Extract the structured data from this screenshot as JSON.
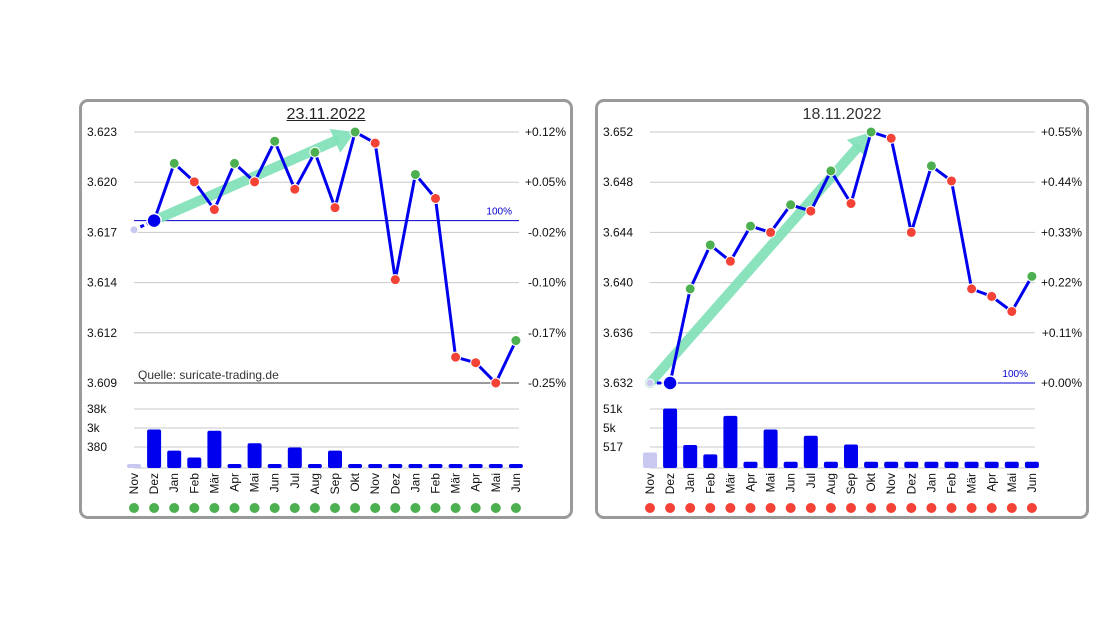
{
  "chart_data": [
    {
      "type": "line",
      "title": "23.11.2022",
      "categories": [
        "Nov",
        "Dez",
        "Jan",
        "Feb",
        "Mär",
        "Apr",
        "Mai",
        "Jun",
        "Jul",
        "Aug",
        "Sep",
        "Okt",
        "Nov",
        "Dez",
        "Jan",
        "Feb",
        "Mär",
        "Apr",
        "Mai",
        "Jun"
      ],
      "values": [
        3.6177,
        3.6182,
        3.6213,
        3.6203,
        3.6188,
        3.6213,
        3.6203,
        3.6225,
        3.6199,
        3.6219,
        3.6189,
        3.623,
        3.6224,
        3.615,
        3.6207,
        3.6194,
        3.6108,
        3.6105,
        3.6094,
        3.6117
      ],
      "marker_colors": [
        "#c8c8f0",
        "#0000ee",
        "#4caf50",
        "#f44336",
        "#f44336",
        "#4caf50",
        "#f44336",
        "#4caf50",
        "#f44336",
        "#4caf50",
        "#f44336",
        "#4caf50",
        "#f44336",
        "#f44336",
        "#4caf50",
        "#f44336",
        "#f44336",
        "#f44336",
        "#f44336",
        "#4caf50"
      ],
      "ylim": [
        3.6094,
        3.623
      ],
      "y_ticks": [
        "3.623",
        "3.620",
        "3.617",
        "3.614",
        "3.612",
        "3.609"
      ],
      "y2_ticks": [
        "+0.12%",
        "+0.05%",
        "-0.02%",
        "-0.10%",
        "-0.17%",
        "-0.25%"
      ],
      "reference_value": 3.6182,
      "reference_label": "100%",
      "source_note": "Quelle: suricate-trading.de",
      "trend_arrow": {
        "from_index": 1,
        "to_index": 11
      },
      "volume": {
        "values": [
          0.03,
          0.62,
          0.28,
          0.17,
          0.6,
          0.04,
          0.4,
          0.03,
          0.33,
          0.03,
          0.28,
          0.02,
          0.02,
          0.02,
          0.02,
          0.02,
          0.02,
          0.02,
          0.02,
          0.02
        ],
        "ticks": [
          "38k",
          "3k",
          "380"
        ],
        "first_bar_color": "#c8c8f0",
        "bar_color": "#0000ee"
      },
      "bottom_dots": [
        "#4caf50",
        "#4caf50",
        "#4caf50",
        "#4caf50",
        "#4caf50",
        "#4caf50",
        "#4caf50",
        "#4caf50",
        "#4caf50",
        "#4caf50",
        "#4caf50",
        "#4caf50",
        "#4caf50",
        "#4caf50",
        "#4caf50",
        "#4caf50",
        "#4caf50",
        "#4caf50",
        "#4caf50",
        "#4caf50"
      ]
    },
    {
      "type": "line",
      "title": "18.11.2022",
      "categories": [
        "Nov",
        "Dez",
        "Jan",
        "Feb",
        "Mär",
        "Apr",
        "Mai",
        "Jun",
        "Jul",
        "Aug",
        "Sep",
        "Okt",
        "Nov",
        "Dez",
        "Jan",
        "Feb",
        "Mär",
        "Apr",
        "Mai",
        "Jun"
      ],
      "values": [
        3.632,
        3.632,
        3.6395,
        3.643,
        3.6417,
        3.6445,
        3.644,
        3.6462,
        3.6457,
        3.6489,
        3.6463,
        3.652,
        3.6515,
        3.644,
        3.6493,
        3.6481,
        3.6395,
        3.6389,
        3.6377,
        3.6405
      ],
      "marker_colors": [
        "#c8c8f0",
        "#0000ee",
        "#4caf50",
        "#4caf50",
        "#f44336",
        "#4caf50",
        "#f44336",
        "#4caf50",
        "#f44336",
        "#4caf50",
        "#f44336",
        "#4caf50",
        "#f44336",
        "#f44336",
        "#4caf50",
        "#f44336",
        "#f44336",
        "#f44336",
        "#f44336",
        "#4caf50"
      ],
      "ylim": [
        3.632,
        3.652
      ],
      "y_ticks": [
        "3.652",
        "3.648",
        "3.644",
        "3.640",
        "3.636",
        "3.632"
      ],
      "y2_ticks": [
        "+0.55%",
        "+0.44%",
        "+0.33%",
        "+0.22%",
        "+0.11%",
        "+0.00%"
      ],
      "reference_value": 3.632,
      "reference_label": "100%",
      "source_note": "",
      "trend_arrow": {
        "from_index": 0,
        "to_index": 11
      },
      "volume": {
        "values": [
          0.25,
          0.96,
          0.37,
          0.22,
          0.84,
          0.1,
          0.62,
          0.1,
          0.52,
          0.1,
          0.38,
          0.1,
          0.1,
          0.1,
          0.1,
          0.1,
          0.1,
          0.1,
          0.1,
          0.1
        ],
        "ticks": [
          "51k",
          "5k",
          "517"
        ],
        "first_bar_color": "#c8c8f0",
        "bar_color": "#0000ee"
      },
      "bottom_dots": [
        "#f44336",
        "#f44336",
        "#f44336",
        "#f44336",
        "#f44336",
        "#f44336",
        "#f44336",
        "#f44336",
        "#f44336",
        "#f44336",
        "#f44336",
        "#f44336",
        "#f44336",
        "#f44336",
        "#f44336",
        "#f44336",
        "#f44336",
        "#f44336",
        "#f44336",
        "#f44336"
      ]
    }
  ]
}
